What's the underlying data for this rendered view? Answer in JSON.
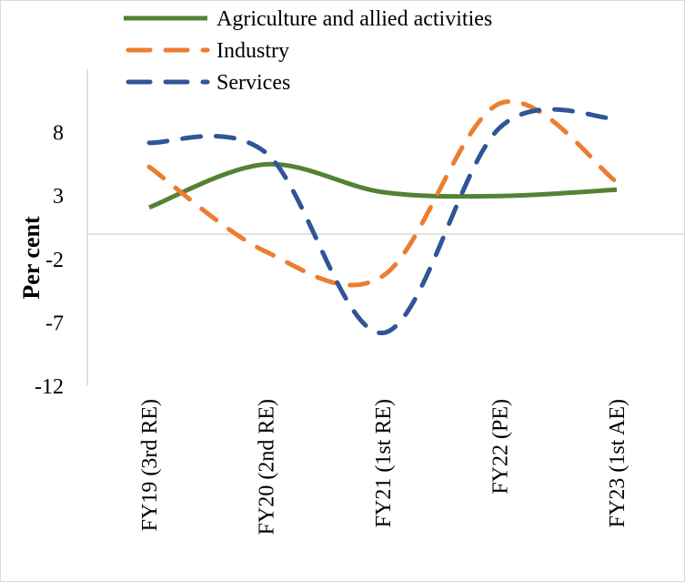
{
  "chart_data": {
    "type": "line",
    "categories": [
      "FY19 (3rd RE)",
      "FY20 (2nd RE)",
      "FY21 (1st RE)",
      "FY22 (PE)",
      "FY23 (1st AE)"
    ],
    "series": [
      {
        "name": "Agriculture and allied activities",
        "values": [
          2.1,
          5.5,
          3.3,
          3.0,
          3.5
        ],
        "color": "#548235",
        "style": "solid"
      },
      {
        "name": "Industry",
        "values": [
          5.3,
          -1.4,
          -3.3,
          10.3,
          4.1
        ],
        "color": "#ED7D31",
        "style": "dashed"
      },
      {
        "name": "Services",
        "values": [
          7.2,
          6.4,
          -7.8,
          8.4,
          9.1
        ],
        "color": "#2F5597",
        "style": "dashed"
      }
    ],
    "ylabel": "Per cent",
    "xlabel": "",
    "yticks": [
      -12,
      -7,
      -2,
      3,
      8
    ],
    "ylim": [
      -12,
      13
    ],
    "zero_line": true,
    "gridlines": false,
    "legend_position": "top"
  }
}
